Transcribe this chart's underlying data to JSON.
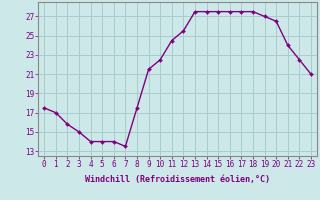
{
  "x": [
    0,
    1,
    2,
    3,
    4,
    5,
    6,
    7,
    8,
    9,
    10,
    11,
    12,
    13,
    14,
    15,
    16,
    17,
    18,
    19,
    20,
    21,
    22,
    23
  ],
  "y": [
    17.5,
    17.0,
    15.8,
    15.0,
    14.0,
    14.0,
    14.0,
    13.5,
    17.5,
    21.5,
    22.5,
    24.5,
    25.5,
    27.5,
    27.5,
    27.5,
    27.5,
    27.5,
    27.5,
    27.0,
    26.5,
    24.0,
    22.5,
    21.0
  ],
  "line_color": "#800080",
  "marker": "D",
  "marker_size": 2.0,
  "linewidth": 1.0,
  "bg_color": "#cce8e8",
  "grid_color": "#aacccc",
  "xlabel": "Windchill (Refroidissement éolien,°C)",
  "xlabel_fontsize": 6.0,
  "xtick_labels": [
    "0",
    "1",
    "2",
    "3",
    "4",
    "5",
    "6",
    "7",
    "8",
    "9",
    "10",
    "11",
    "12",
    "13",
    "14",
    "15",
    "16",
    "17",
    "18",
    "19",
    "20",
    "21",
    "22",
    "23"
  ],
  "yticks": [
    13,
    15,
    17,
    19,
    21,
    23,
    25,
    27
  ],
  "ylim": [
    12.5,
    28.5
  ],
  "xlim": [
    -0.5,
    23.5
  ],
  "tick_fontsize": 5.5,
  "tick_color": "#800080",
  "spine_color": "#888888"
}
